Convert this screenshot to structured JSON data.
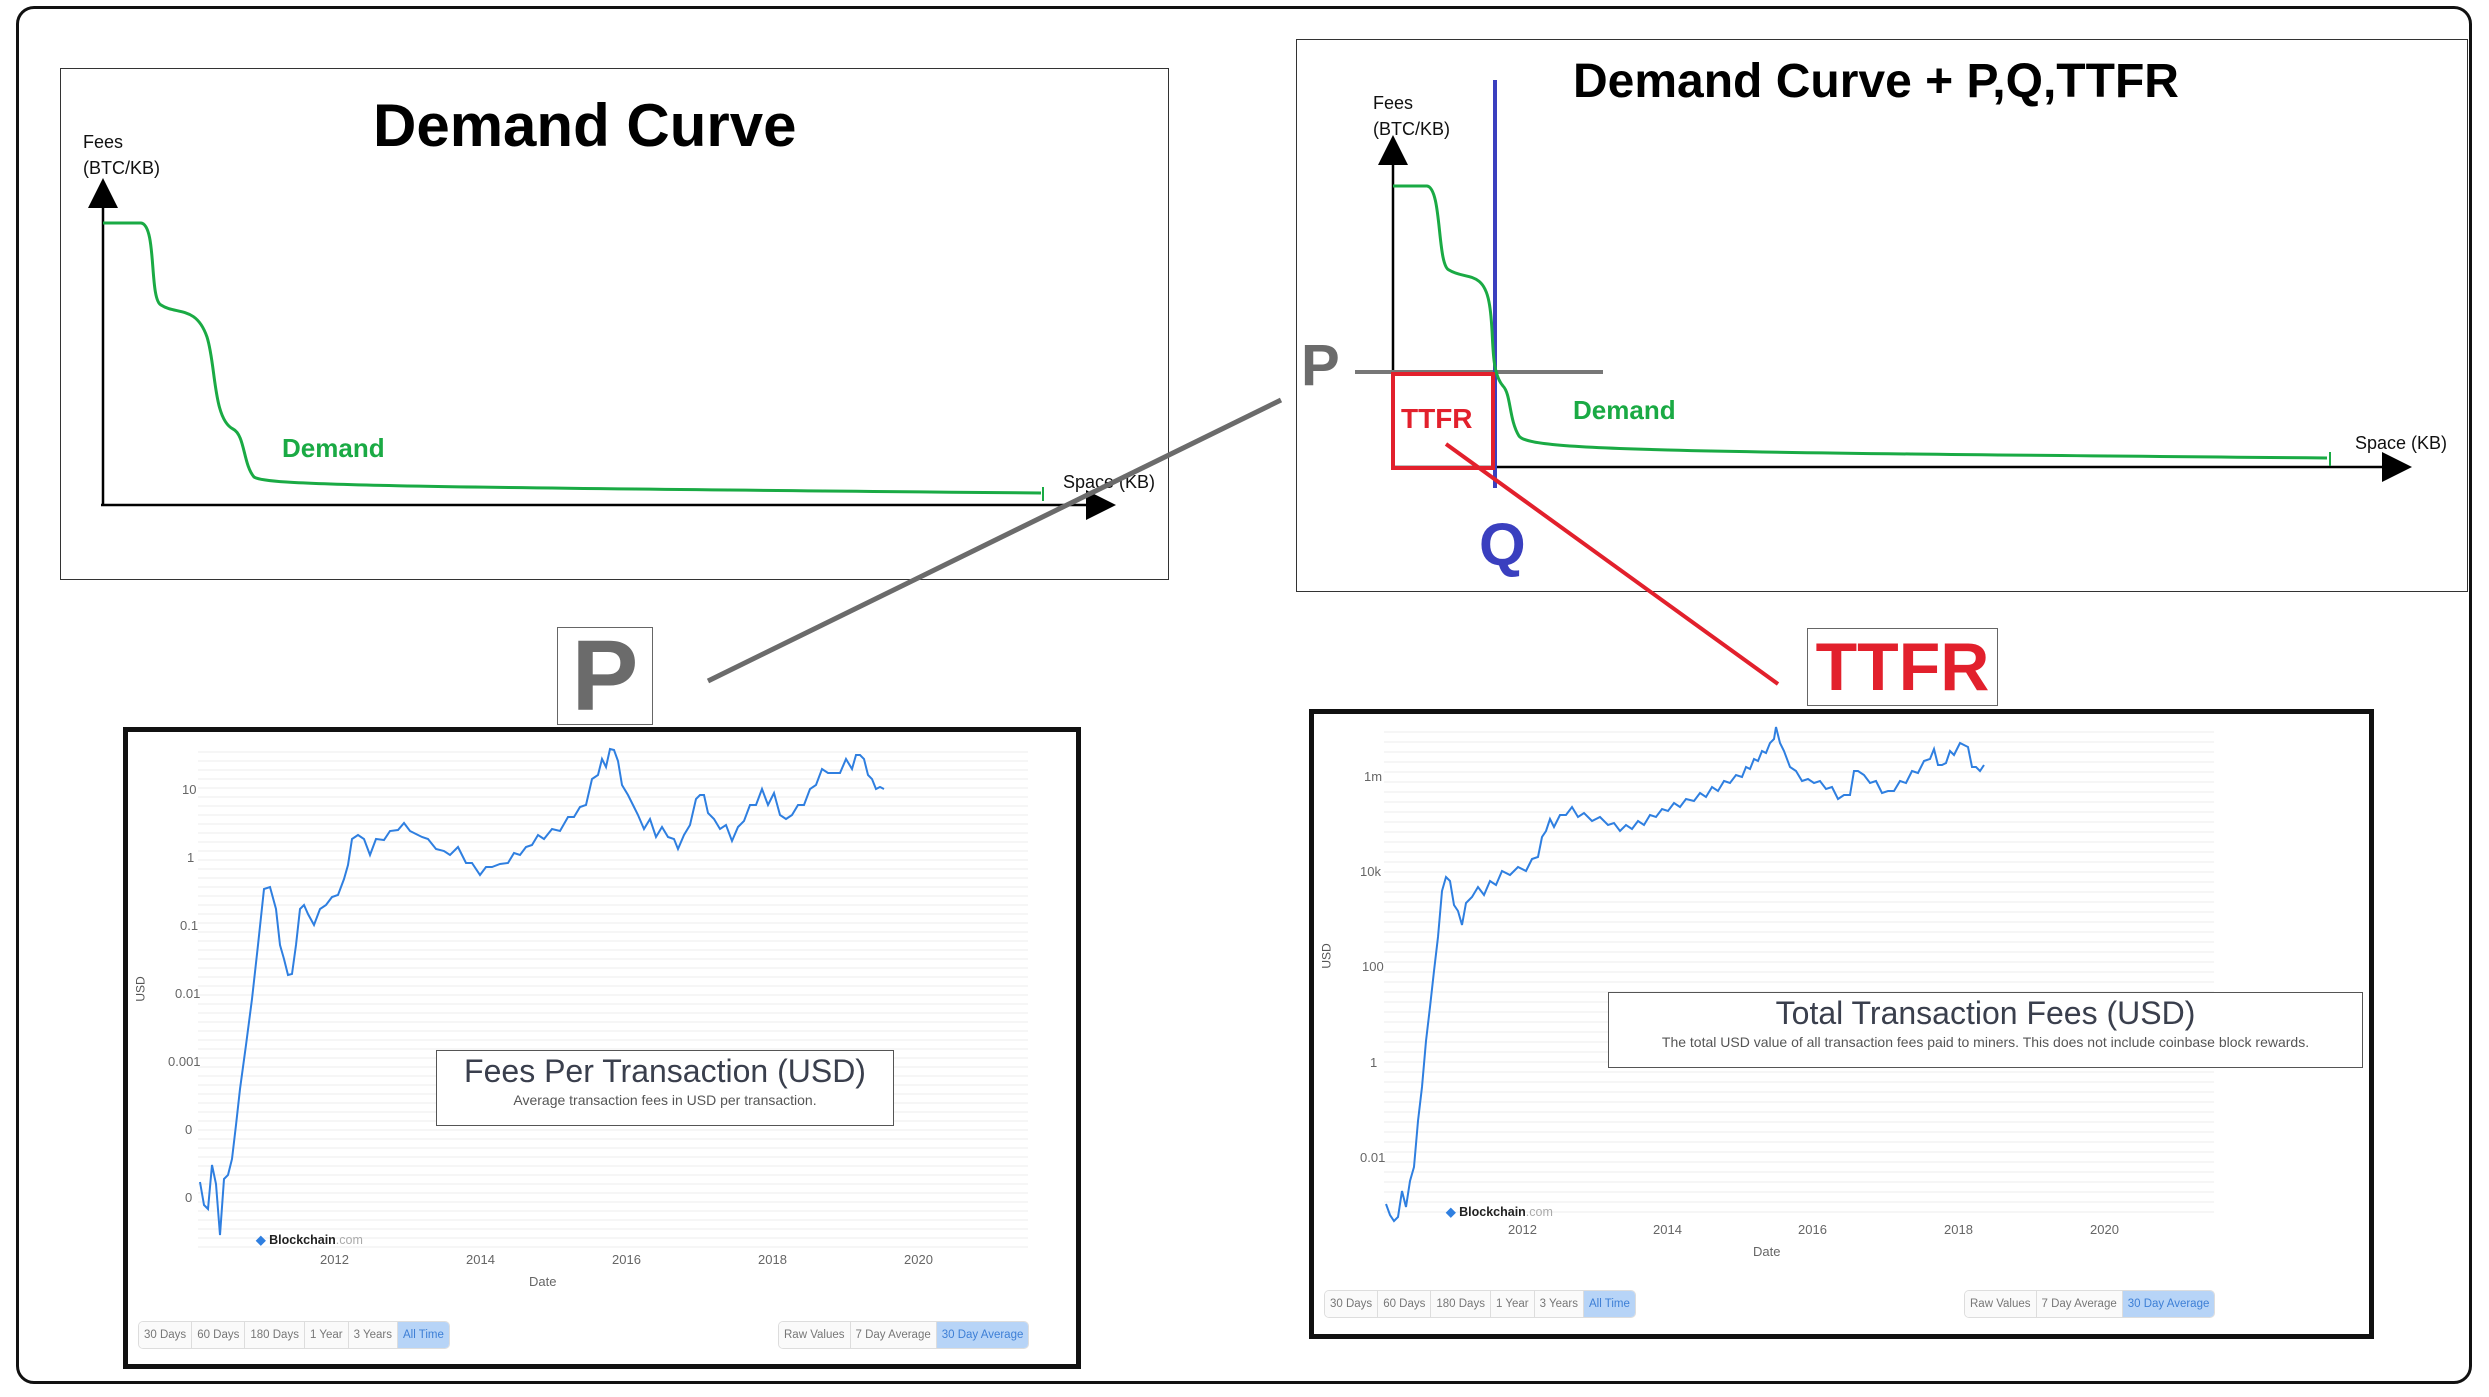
{
  "diagram_1": {
    "title": "Demand Curve",
    "y_axis_label_line1": "Fees",
    "y_axis_label_line2": "(BTC/KB)",
    "x_axis_label": "Space (KB)",
    "curve_label": "Demand",
    "curve_color": "#1aaa44"
  },
  "diagram_2": {
    "title": "Demand Curve + P,Q,TTFR",
    "y_axis_label_line1": "Fees",
    "y_axis_label_line2": "(BTC/KB)",
    "x_axis_label": "Space (KB)",
    "curve_label": "Demand",
    "p_label": "P",
    "q_label": "Q",
    "ttfr_label": "TTFR",
    "q_line_color": "#3a3fbf",
    "p_line_color": "#777777",
    "ttfr_color": "#e2202c"
  },
  "callouts": {
    "p_letter": "P",
    "ttfr_letter": "TTFR"
  },
  "chart_left": {
    "title": "Fees Per Transaction (USD)",
    "description": "Average transaction fees in USD per transaction.",
    "y_axis_label": "USD",
    "x_axis_label": "Date",
    "y_ticks": [
      "10",
      "1",
      "0.1",
      "0.01",
      "0.001",
      "0",
      "0"
    ],
    "x_ticks": [
      "2012",
      "2014",
      "2016",
      "2018",
      "2020"
    ],
    "logo_name": "Blockchain",
    "logo_domain": ".com",
    "range_buttons": [
      "30 Days",
      "60 Days",
      "180 Days",
      "1 Year",
      "3 Years",
      "All Time"
    ],
    "active_range": "All Time",
    "avg_buttons": [
      "Raw Values",
      "7 Day Average",
      "30 Day Average"
    ],
    "active_avg": "30 Day Average",
    "line_color": "#2f7fe0"
  },
  "chart_right": {
    "title": "Total Transaction Fees (USD)",
    "description": "The total USD value of all transaction fees paid to miners. This does not include coinbase block rewards.",
    "y_axis_label": "USD",
    "x_axis_label": "Date",
    "y_ticks": [
      "1m",
      "10k",
      "100",
      "1",
      "0.01"
    ],
    "x_ticks": [
      "2012",
      "2014",
      "2016",
      "2018",
      "2020"
    ],
    "logo_name": "Blockchain",
    "logo_domain": ".com",
    "range_buttons": [
      "30 Days",
      "60 Days",
      "180 Days",
      "1 Year",
      "3 Years",
      "All Time"
    ],
    "active_range": "All Time",
    "avg_buttons": [
      "Raw Values",
      "7 Day Average",
      "30 Day Average"
    ],
    "active_avg": "30 Day Average",
    "line_color": "#2f7fe0"
  }
}
